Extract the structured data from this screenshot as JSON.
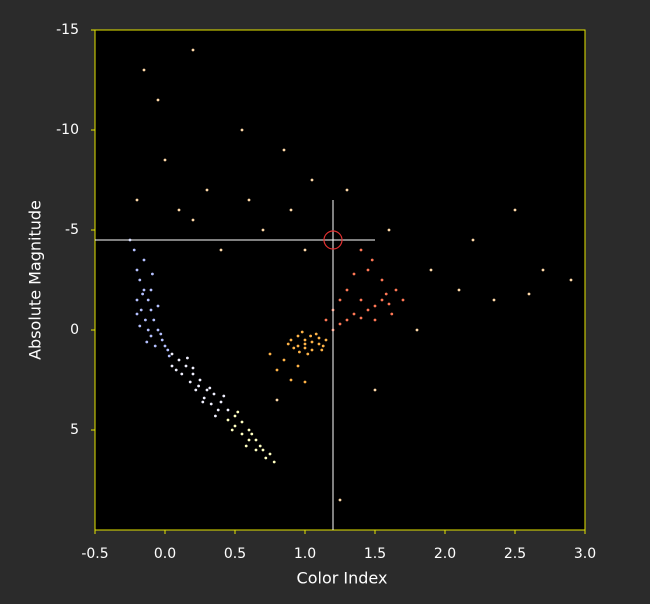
{
  "chart_data": {
    "type": "scatter",
    "xlabel": "Color Index",
    "ylabel": "Absolute Magnitude",
    "xlim": [
      -0.5,
      3.0
    ],
    "ylim": [
      -15,
      10
    ],
    "y_inverted": true,
    "grid": false,
    "xticks": [
      -0.5,
      {
        "value": 0,
        "label": "0.0"
      },
      0.5,
      {
        "value": 1,
        "label": "1.0"
      },
      1.5,
      {
        "value": 2,
        "label": "2.0"
      },
      2.5,
      {
        "value": 3,
        "label": "3.0"
      }
    ],
    "yticks": [
      -15,
      -10,
      -5,
      0,
      5
    ],
    "cursor": {
      "x": 1.2,
      "y": -4.5,
      "color": "#e03030"
    },
    "series": [
      {
        "color": "#b4c0ff",
        "x": [
          -0.22,
          -0.2,
          -0.18,
          -0.15,
          -0.2,
          -0.12,
          -0.17,
          -0.1,
          -0.14,
          -0.08,
          -0.12,
          -0.05,
          -0.1,
          -0.02,
          -0.07,
          0,
          -0.15,
          -0.25,
          -0.1,
          -0.05,
          -0.18,
          -0.03,
          -0.13,
          0.02,
          -0.16,
          -0.09,
          -0.2,
          0.03
        ],
        "y": [
          -4,
          -3,
          -2.5,
          -2,
          -1.5,
          -1.5,
          -1,
          -1,
          -0.5,
          -0.5,
          0,
          0,
          0.3,
          0.5,
          0.8,
          0.8,
          -3.5,
          -4.5,
          -2,
          -1.2,
          -0.2,
          0.2,
          0.6,
          1,
          -1.8,
          -2.8,
          -0.8,
          1.3
        ]
      },
      {
        "color": "#f0f0ff",
        "x": [
          0.05,
          0.1,
          0.05,
          0.15,
          0.12,
          0.2,
          0.18,
          0.25,
          0.22,
          0.3,
          0.28,
          0.35,
          0.33,
          0.4,
          0.38,
          0.45,
          0.08,
          0.16,
          0.24,
          0.32,
          0.42,
          0.2,
          0.27,
          0.36
        ],
        "y": [
          1.2,
          1.5,
          1.8,
          1.8,
          2.2,
          2.2,
          2.6,
          2.5,
          3,
          3,
          3.4,
          3.2,
          3.7,
          3.6,
          4,
          4,
          2,
          1.4,
          2.8,
          2.9,
          3.3,
          1.9,
          3.6,
          4.3
        ]
      },
      {
        "color": "#ffffc0",
        "x": [
          0.45,
          0.5,
          0.5,
          0.55,
          0.55,
          0.6,
          0.6,
          0.65,
          0.65,
          0.7,
          0.72,
          0.78,
          0.48,
          0.58,
          0.68,
          0.52,
          0.62,
          0.75
        ],
        "y": [
          4.5,
          4.3,
          4.8,
          4.6,
          5.2,
          5,
          5.5,
          5.5,
          6,
          6,
          6.4,
          6.6,
          5,
          5.8,
          5.8,
          4.1,
          5.2,
          6.2
        ]
      },
      {
        "color": "#ffb347",
        "x": [
          0.9,
          0.95,
          0.95,
          1.0,
          1.0,
          1.05,
          1.05,
          1.1,
          1.1,
          0.92,
          1.02,
          1.08,
          0.98,
          1.12,
          0.88,
          1.15,
          1.0,
          1.04,
          0.96,
          1.13,
          0.8,
          0.9,
          0.85,
          0.95,
          1.0,
          0.75
        ],
        "y": [
          0.5,
          0.3,
          0.8,
          0.5,
          0.9,
          0.6,
          1.0,
          0.7,
          0.4,
          0.9,
          1.2,
          0.2,
          0.1,
          1.0,
          0.7,
          0.5,
          0.7,
          0.3,
          1.1,
          0.8,
          2,
          2.5,
          1.5,
          1.8,
          2.6,
          1.2
        ]
      },
      {
        "color": "#ff7755",
        "x": [
          1.2,
          1.25,
          1.3,
          1.35,
          1.4,
          1.45,
          1.5,
          1.55,
          1.6,
          1.58,
          1.5,
          1.62,
          1.4,
          1.3,
          1.35,
          1.45,
          1.55,
          1.2,
          1.25,
          1.65,
          1.48,
          1.4,
          1.7,
          1.15
        ],
        "y": [
          0,
          -0.3,
          -0.5,
          -0.8,
          -0.6,
          -1,
          -1.2,
          -1.5,
          -1.3,
          -1.8,
          -0.5,
          -0.8,
          -1.5,
          -2,
          -2.8,
          -3,
          -2.5,
          -1,
          -1.5,
          -2,
          -3.5,
          -4,
          -1.5,
          -0.5
        ]
      },
      {
        "color": "#ffd9a8",
        "x": [
          0.2,
          -0.15,
          -0.05,
          0.55,
          0.85,
          0.0,
          0.3,
          0.6,
          0.2,
          0.7,
          0.9,
          1.0,
          0.4,
          1.3,
          1.05,
          1.6,
          1.9,
          2.2,
          2.5,
          2.7,
          2.9,
          2.1,
          2.6,
          1.8,
          2.35,
          1.25,
          1.5,
          0.1,
          -0.2,
          0.8
        ],
        "y": [
          -14,
          -13,
          -11.5,
          -10,
          -9,
          -8.5,
          -7,
          -6.5,
          -5.5,
          -5,
          -6,
          -4,
          -4,
          -7,
          -7.5,
          -5,
          -3,
          -4.5,
          -6,
          -3,
          -2.5,
          -2,
          -1.8,
          0,
          -1.5,
          8.5,
          3,
          -6,
          -6.5,
          3.5
        ]
      }
    ]
  }
}
